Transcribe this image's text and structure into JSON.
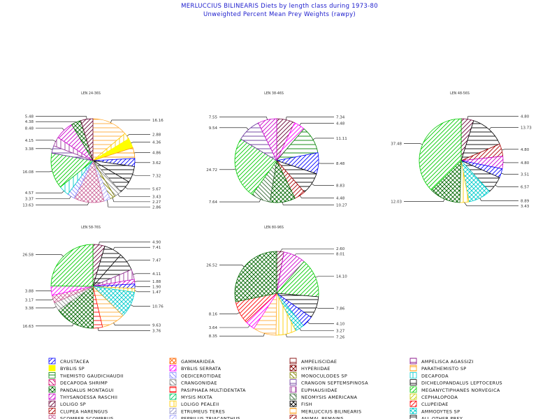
{
  "header": {
    "title": "MERLUCCIUS BILINEARIS Diets by length class during 1973-80",
    "subtitle": "Unweighted Percent Mean Prey Weights (rawpy)"
  },
  "categories": [
    {
      "name": "CRUSTACEA",
      "color": "#0000ff",
      "pattern": "fdiag"
    },
    {
      "name": "GAMMARIDEA",
      "color": "#ff6600",
      "pattern": "cross"
    },
    {
      "name": "AMPELISCIDAE",
      "color": "#800000",
      "pattern": "hline"
    },
    {
      "name": "AMPELISCA AGASSIZI",
      "color": "#800080",
      "pattern": "hline"
    },
    {
      "name": "BYBLIS SP",
      "color": "#ffff00",
      "pattern": "solid"
    },
    {
      "name": "BYBLIS SERRATA",
      "color": "#ff00ff",
      "pattern": "fdiag"
    },
    {
      "name": "HYPERIIDAE",
      "color": "#800000",
      "pattern": "cross"
    },
    {
      "name": "PARATHEMISTO SP",
      "color": "#ff9900",
      "pattern": "hline"
    },
    {
      "name": "THEMISTO GAUDICHAUDII",
      "color": "#008000",
      "pattern": "hline"
    },
    {
      "name": "OEDICEROTIDAE",
      "color": "#8888ff",
      "pattern": "bdiag"
    },
    {
      "name": "MONOCULODES SP",
      "color": "#808000",
      "pattern": "bdiag"
    },
    {
      "name": "DECAPODA",
      "color": "#00cccc",
      "pattern": "vline"
    },
    {
      "name": "DECAPODA SHRIMP",
      "color": "#cc0066",
      "pattern": "bdiag"
    },
    {
      "name": "CRANGONIDAE",
      "color": "#888888",
      "pattern": "bdiag"
    },
    {
      "name": "CRANGON SEPTEMSPINOSA",
      "color": "#663399",
      "pattern": "hline"
    },
    {
      "name": "DICHELOPANDALUS LEPTOCERUS",
      "color": "#000000",
      "pattern": "hline"
    },
    {
      "name": "PANDALUS MONTAGUI",
      "color": "#006600",
      "pattern": "cross"
    },
    {
      "name": "PASIPHAEA MULTIDENTATA",
      "color": "#ff0000",
      "pattern": "hline"
    },
    {
      "name": "EUPHAUSIIDAE",
      "color": "#993399",
      "pattern": "vline"
    },
    {
      "name": "MEGANYCTIPHANES NORVEGICA",
      "color": "#00cc00",
      "pattern": "fdiag"
    },
    {
      "name": "THYSANOESSA RASCHII",
      "color": "#cc00cc",
      "pattern": "fdiag"
    },
    {
      "name": "MYSIS MIXTA",
      "color": "#00cc66",
      "pattern": "fdiag"
    },
    {
      "name": "NEOMYSIS AMERICANA",
      "color": "#336633",
      "pattern": "bdiag"
    },
    {
      "name": "CEPHALOPODA",
      "color": "#cccc00",
      "pattern": "fdiag"
    },
    {
      "name": "LOLIGO SP",
      "color": "#660033",
      "pattern": "fdiag"
    },
    {
      "name": "LOLIGO PEALEII",
      "color": "#ffcc00",
      "pattern": "vline"
    },
    {
      "name": "FISH",
      "color": "#000000",
      "pattern": "cross"
    },
    {
      "name": "CLUPEIDAE",
      "color": "#ff0000",
      "pattern": "fdiag"
    },
    {
      "name": "CLUPEA HARENGUS",
      "color": "#aa0000",
      "pattern": "fdiag"
    },
    {
      "name": "ETRUMEUS TERES",
      "color": "#9999cc",
      "pattern": "fdiag"
    },
    {
      "name": "MERLUCCIUS BILINEARIS",
      "color": "#ffaa33",
      "pattern": "hline"
    },
    {
      "name": "AMMODYTES SP",
      "color": "#00cccc",
      "pattern": "cross"
    },
    {
      "name": "SCOMBER SCOMBRUS",
      "color": "#cc6699",
      "pattern": "cross"
    },
    {
      "name": "PEPRILUS TRIACANTHUS",
      "color": "#aaaaff",
      "pattern": "fdiag"
    },
    {
      "name": "ANIMAL REMAINS",
      "color": "#990000",
      "pattern": "fdiag"
    },
    {
      "name": "ALL OTHER PREY",
      "color": "#000000",
      "pattern": "hline"
    }
  ],
  "chart_data": [
    {
      "type": "pie",
      "title": "LEN 24-36S",
      "slices": [
        {
          "category": "MERLUCCIUS BILINEARIS",
          "value": 16.16
        },
        {
          "category": "LOLIGO PEALEII",
          "value": 2.88
        },
        {
          "category": "BYBLIS SP",
          "value": 4.36
        },
        {
          "category": "PARATHEMISTO SP",
          "value": 4.86
        },
        {
          "category": "CRUSTACEA",
          "value": 3.62
        },
        {
          "category": "DICHELOPANDALUS LEPTOCERUS",
          "value": 7.32
        },
        {
          "category": "ALL OTHER PREY",
          "value": 5.67
        },
        {
          "category": "CRANGONIDAE",
          "value": 3.43
        },
        {
          "category": "MONOCULODES SP",
          "value": 2.27
        },
        {
          "category": "PEPRILUS TRIACANTHUS",
          "value": 2.86
        },
        {
          "category": "SCOMBER SCOMBRUS",
          "value": 13.63
        },
        {
          "category": "OEDICEROTIDAE",
          "value": 3.37
        },
        {
          "category": "DECAPODA",
          "value": 4.57
        },
        {
          "category": "MEGANYCTIPHANES NORVEGICA",
          "value": 16.08
        },
        {
          "category": "CRANGON SEPTEMSPINOSA",
          "value": 3.38
        },
        {
          "category": "EUPHAUSIIDAE",
          "value": 4.15
        },
        {
          "category": "THYSANOESSA RASCHII",
          "value": 8.48
        },
        {
          "category": "PANDALUS MONTAGUI",
          "value": 4.38
        },
        {
          "category": "LOLIGO SP",
          "value": 5.48
        }
      ]
    },
    {
      "type": "pie",
      "title": "LEN 38-46S",
      "slices": [
        {
          "category": "LOLIGO SP",
          "value": 7.34
        },
        {
          "category": "BYBLIS SERRATA",
          "value": 4.48
        },
        {
          "category": "THEMISTO GAUDICHAUDII",
          "value": 11.11
        },
        {
          "category": "CRUSTACEA",
          "value": 8.48
        },
        {
          "category": "DICHELOPANDALUS LEPTOCERUS",
          "value": 8.83
        },
        {
          "category": "CLUPEA HARENGUS",
          "value": 4.48
        },
        {
          "category": "PANDALUS MONTAGUI",
          "value": 10.27
        },
        {
          "category": "NEOMYSIS AMERICANA",
          "value": 7.64
        },
        {
          "category": "MEGANYCTIPHANES NORVEGICA",
          "value": 24.72
        },
        {
          "category": "CRANGON SEPTEMSPINOSA",
          "value": 9.54
        },
        {
          "category": "THYSANOESSA RASCHII",
          "value": 7.55
        }
      ]
    },
    {
      "type": "pie",
      "title": "LEN 48-56S",
      "slices": [
        {
          "category": "LOLIGO SP",
          "value": 4.8
        },
        {
          "category": "DICHELOPANDALUS LEPTOCERUS",
          "value": 13.73
        },
        {
          "category": "CLUPEA HARENGUS",
          "value": 4.8
        },
        {
          "category": "THYSANOESSA RASCHII",
          "value": 4.8
        },
        {
          "category": "CRUSTACEA",
          "value": 3.51
        },
        {
          "category": "ALL OTHER PREY",
          "value": 6.57
        },
        {
          "category": "AMMODYTES SP",
          "value": 8.89
        },
        {
          "category": "LOLIGO PEALEII",
          "value": 3.43
        },
        {
          "category": "PANDALUS MONTAGUI",
          "value": 12.03
        },
        {
          "category": "MEGANYCTIPHANES NORVEGICA",
          "value": 37.48
        }
      ]
    },
    {
      "type": "pie",
      "title": "LEN 58-76S",
      "slices": [
        {
          "category": "LOLIGO SP",
          "value": 4.9
        },
        {
          "category": "DICHELOPANDALUS LEPTOCERUS",
          "value": 7.41
        },
        {
          "category": "ALL OTHER PREY",
          "value": 7.47
        },
        {
          "category": "EUPHAUSIIDAE",
          "value": 4.11
        },
        {
          "category": "THYSANOESSA RASCHII",
          "value": 1.88
        },
        {
          "category": "CRUSTACEA",
          "value": 1.9
        },
        {
          "category": "LOLIGO PEALEII",
          "value": 1.47
        },
        {
          "category": "AMMODYTES SP",
          "value": 10.76
        },
        {
          "category": "MERLUCCIUS BILINEARIS",
          "value": 9.63
        },
        {
          "category": "PASIPHAEA MULTIDENTATA",
          "value": 3.76
        },
        {
          "category": "PANDALUS MONTAGUI",
          "value": 16.63
        },
        {
          "category": "CRANGONIDAE",
          "value": 3.38
        },
        {
          "category": "SCOMBER SCOMBRUS",
          "value": 3.17
        },
        {
          "category": "BYBLIS SERRATA",
          "value": 3.88
        },
        {
          "category": "MEGANYCTIPHANES NORVEGICA",
          "value": 26.58
        }
      ]
    },
    {
      "type": "pie",
      "title": "LEN 80-96S",
      "slices": [
        {
          "category": "LOLIGO SP",
          "value": 2.6
        },
        {
          "category": "THYSANOESSA RASCHII",
          "value": 8.01
        },
        {
          "category": "MEGANYCTIPHANES NORVEGICA",
          "value": 14.1
        },
        {
          "category": "ALL OTHER PREY",
          "value": 7.86
        },
        {
          "category": "CRUSTACEA",
          "value": 4.1
        },
        {
          "category": "AMMODYTES SP",
          "value": 3.27
        },
        {
          "category": "LOLIGO PEALEII",
          "value": 7.26
        },
        {
          "category": "MERLUCCIUS BILINEARIS",
          "value": 8.35
        },
        {
          "category": "BYBLIS SERRATA",
          "value": 3.64
        },
        {
          "category": "CLUPEIDAE",
          "value": 8.16
        },
        {
          "category": "PANDALUS MONTAGUI",
          "value": 26.52
        }
      ]
    }
  ]
}
